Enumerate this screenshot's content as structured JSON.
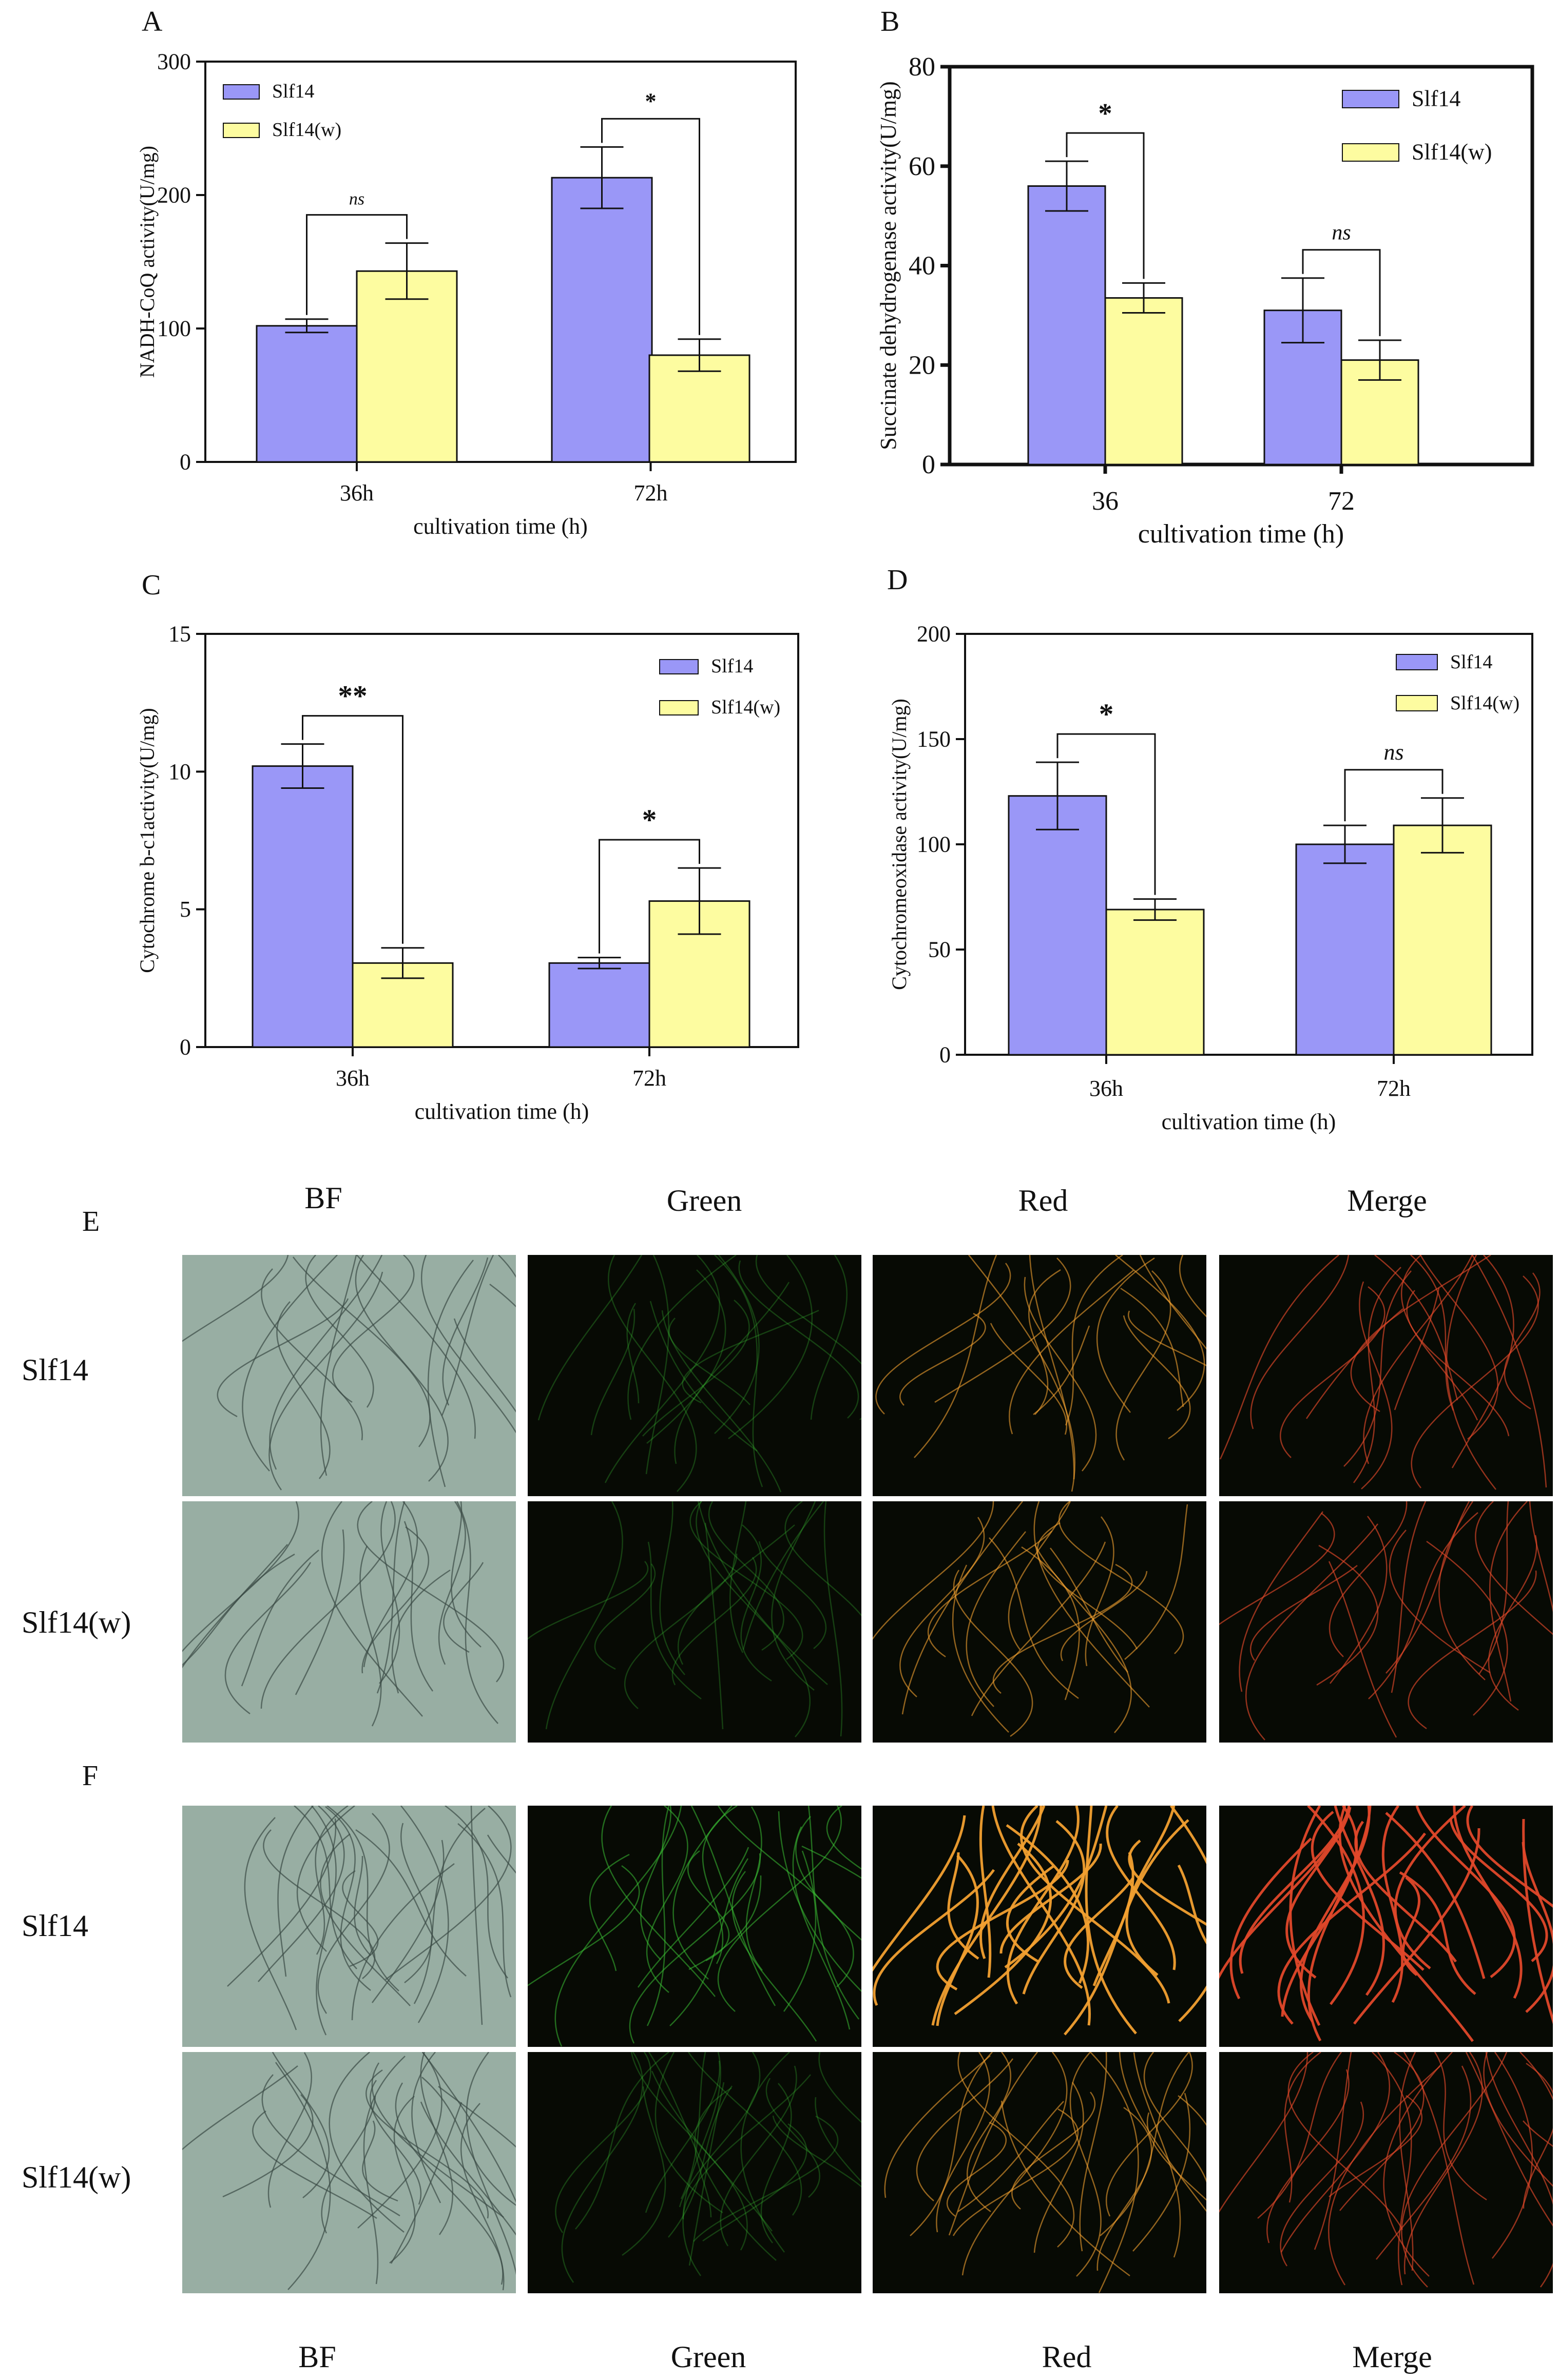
{
  "panels": {
    "A": {
      "letter": "A"
    },
    "B": {
      "letter": "B"
    },
    "C": {
      "letter": "C"
    },
    "D": {
      "letter": "D"
    },
    "E": {
      "letter": "E"
    },
    "F": {
      "letter": "F"
    }
  },
  "chart_data": [
    {
      "id": "A",
      "type": "bar",
      "categories": [
        "36h",
        "72h"
      ],
      "series": [
        {
          "name": "Slf14",
          "values": [
            102,
            213
          ],
          "err": [
            5,
            23
          ]
        },
        {
          "name": "Slf14(w)",
          "values": [
            143,
            80
          ],
          "err": [
            21,
            12
          ]
        }
      ],
      "xlabel": "cultivation time (h)",
      "ylabel": "NADH-CoQ activity(U/mg)",
      "ylim": [
        0,
        300
      ],
      "yticks": [
        0,
        100,
        200,
        300
      ],
      "significance": [
        "ns",
        "*"
      ],
      "colors": {
        "Slf14": "#9a97f7",
        "Slf14(w)": "#fdfca0"
      }
    },
    {
      "id": "B",
      "type": "bar",
      "categories": [
        "36",
        "72"
      ],
      "series": [
        {
          "name": "Slf14",
          "values": [
            56,
            31
          ],
          "err": [
            5,
            6.5
          ]
        },
        {
          "name": "Slf14(w)",
          "values": [
            33.5,
            21
          ],
          "err": [
            3,
            4
          ]
        }
      ],
      "xlabel": "cultivation time (h)",
      "ylabel": "Succinate dehydrogenase activity(U/mg)",
      "ylim": [
        0,
        80
      ],
      "yticks": [
        0,
        20,
        40,
        60,
        80
      ],
      "significance": [
        "*",
        "ns"
      ],
      "colors": {
        "Slf14": "#9a97f7",
        "Slf14(w)": "#fdfca0"
      }
    },
    {
      "id": "C",
      "type": "bar",
      "categories": [
        "36h",
        "72h"
      ],
      "series": [
        {
          "name": "Slf14",
          "values": [
            10.2,
            3.05
          ],
          "err": [
            0.8,
            0.2
          ]
        },
        {
          "name": "Slf14(w)",
          "values": [
            3.05,
            5.3
          ],
          "err": [
            0.55,
            1.2
          ]
        }
      ],
      "xlabel": "cultivation time (h)",
      "ylabel": "Cytochrome b-c1activity(U/mg)",
      "ylim": [
        0,
        15
      ],
      "yticks": [
        0,
        5,
        10,
        15
      ],
      "significance": [
        "**",
        "*"
      ],
      "colors": {
        "Slf14": "#9a97f7",
        "Slf14(w)": "#fdfca0"
      }
    },
    {
      "id": "D",
      "type": "bar",
      "categories": [
        "36h",
        "72h"
      ],
      "series": [
        {
          "name": "Slf14",
          "values": [
            123,
            100
          ],
          "err": [
            16,
            9
          ]
        },
        {
          "name": "Slf14(w)",
          "values": [
            69,
            109
          ],
          "err": [
            5,
            13
          ]
        }
      ],
      "xlabel": "cultivation time (h)",
      "ylabel": "Cytochromeoxidase activity(U/mg)",
      "ylim": [
        0,
        200
      ],
      "yticks": [
        0,
        50,
        100,
        150,
        200
      ],
      "significance": [
        "*",
        "ns"
      ],
      "colors": {
        "Slf14": "#9a97f7",
        "Slf14(w)": "#fdfca0"
      }
    }
  ],
  "microscopy": {
    "headers_top": [
      "BF",
      "Green",
      "Red",
      "Merge"
    ],
    "headers_bottom": [
      "BF",
      "Green",
      "Red",
      "Merge"
    ],
    "E_rows": [
      "Slf14",
      "Slf14(w)"
    ],
    "F_rows": [
      "Slf14",
      "Slf14(w)"
    ],
    "colors": {
      "bf": "#8fa79b",
      "dark": "#070a04",
      "green": "#3bbf35",
      "red": "#e0482a",
      "orange": "#f2a030"
    }
  }
}
